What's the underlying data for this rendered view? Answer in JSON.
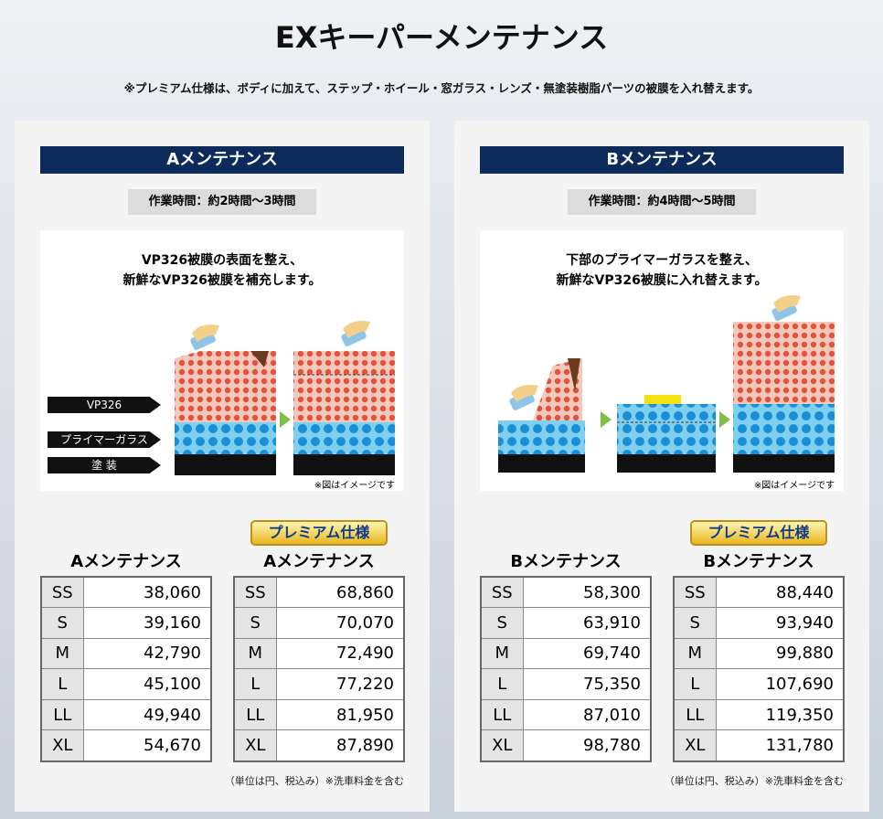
{
  "title": "EXキーパーメンテナンス",
  "note": "※プレミアム仕様は、ボディに加えて、ステップ・ホイール・窓ガラス・レンズ・無塗装樹脂パーツの被膜を入れ替えます。",
  "panels": [
    {
      "heading": "Aメンテナンス",
      "time": "作業時間：約2時間〜3時間",
      "caption": [
        "VP326被膜の表面を整え、",
        "新鮮なVP326被膜を補充します。"
      ],
      "layer_labels": [
        "VP326",
        "プライマーガラス",
        "塗 装"
      ],
      "image_note": "※図はイメージです",
      "badge": "プレミアム仕様",
      "tables": [
        {
          "title": "Aメンテナンス",
          "rows": [
            [
              "SS",
              "38,060"
            ],
            [
              "S",
              "39,160"
            ],
            [
              "M",
              "42,790"
            ],
            [
              "L",
              "45,100"
            ],
            [
              "LL",
              "49,940"
            ],
            [
              "XL",
              "54,670"
            ]
          ]
        },
        {
          "title": "Aメンテナンス",
          "rows": [
            [
              "SS",
              "68,860"
            ],
            [
              "S",
              "70,070"
            ],
            [
              "M",
              "72,490"
            ],
            [
              "L",
              "77,220"
            ],
            [
              "LL",
              "81,950"
            ],
            [
              "XL",
              "87,890"
            ]
          ]
        }
      ],
      "footnote": "（単位は円、税込み）※洗車料金を含む"
    },
    {
      "heading": "Bメンテナンス",
      "time": "作業時間：約4時間〜5時間",
      "caption": [
        "下部のプライマーガラスを整え、",
        "新鮮なVP326被膜に入れ替えます。"
      ],
      "image_note": "※図はイメージです",
      "badge": "プレミアム仕様",
      "tables": [
        {
          "title": "Bメンテナンス",
          "rows": [
            [
              "SS",
              "58,300"
            ],
            [
              "S",
              "63,910"
            ],
            [
              "M",
              "69,740"
            ],
            [
              "L",
              "75,350"
            ],
            [
              "LL",
              "87,010"
            ],
            [
              "XL",
              "98,780"
            ]
          ]
        },
        {
          "title": "Bメンテナンス",
          "rows": [
            [
              "SS",
              "88,440"
            ],
            [
              "S",
              "93,940"
            ],
            [
              "M",
              "99,880"
            ],
            [
              "L",
              "107,690"
            ],
            [
              "LL",
              "119,350"
            ],
            [
              "XL",
              "131,780"
            ]
          ]
        }
      ],
      "footnote": "（単位は円、税込み）※洗車料金を含む"
    }
  ]
}
